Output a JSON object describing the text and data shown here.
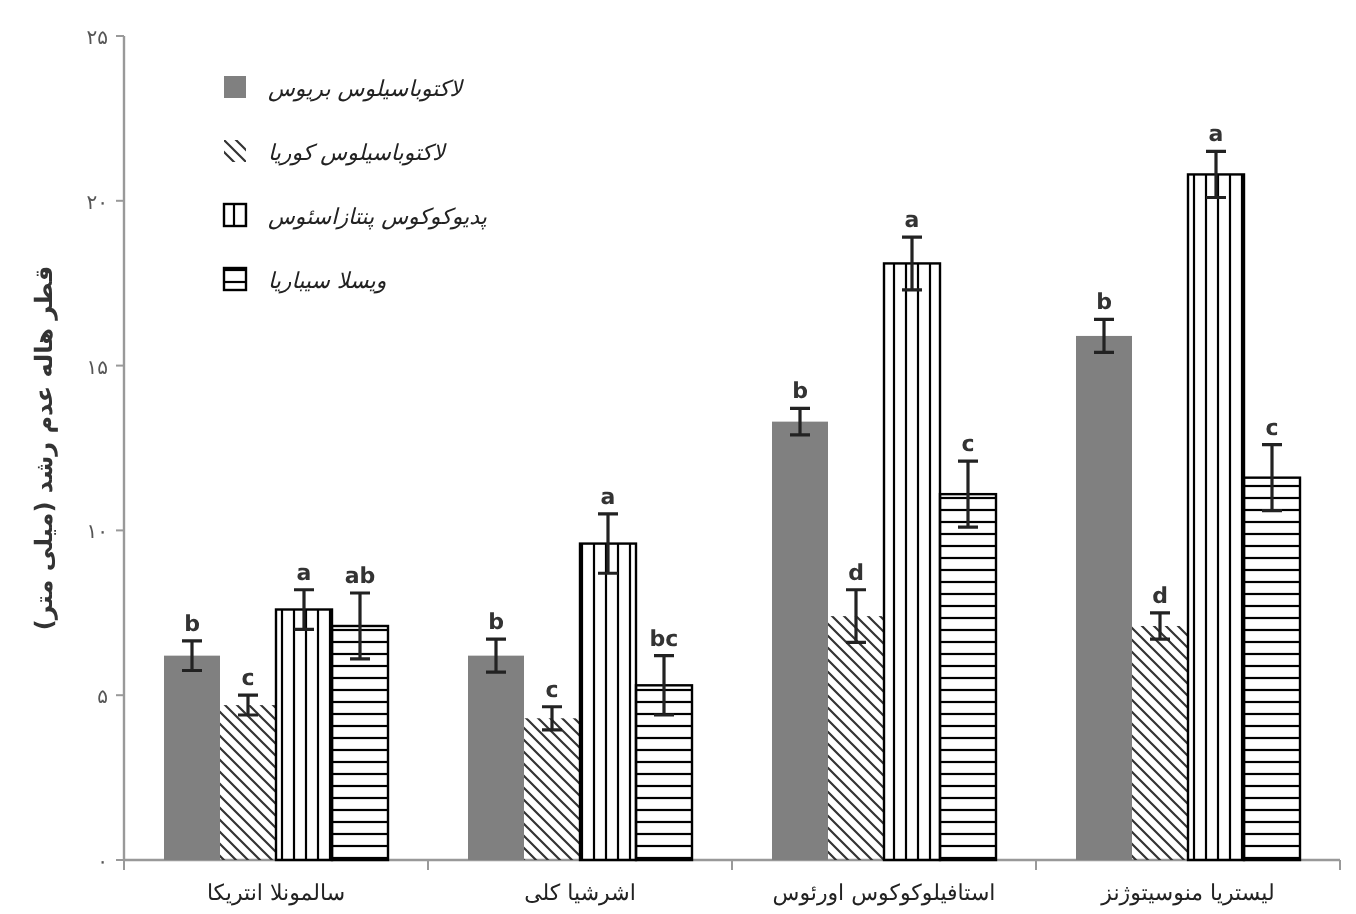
{
  "chart_data": {
    "type": "bar",
    "ylabel": "قطر هاله عدم رشد (میلی متر)",
    "categories": [
      "سالمونلا انتریکا",
      "اشرشیا کلی",
      "استافیلوکوکوس اورئوس",
      "لیستریا منوسیتوژنز"
    ],
    "series": [
      {
        "name": "لاکتوباسیلوس بریوس",
        "color": "#808080",
        "values": [
          6.2,
          6.2,
          13.3,
          15.9
        ],
        "errors": [
          0.45,
          0.5,
          0.4,
          0.5
        ],
        "value_labels": [
          "b",
          "b",
          "b",
          "b"
        ]
      },
      {
        "name": "لاکتوباسیلوس کوریا",
        "color": "#333333",
        "values": [
          4.7,
          4.3,
          7.4,
          7.1
        ],
        "errors": [
          0.3,
          0.35,
          0.8,
          0.4
        ],
        "value_labels": [
          "c",
          "c",
          "d",
          "d"
        ]
      },
      {
        "name": "پدیوکوکوس پنتازاسئوس",
        "color": "#000000",
        "values": [
          7.6,
          9.6,
          18.1,
          20.8
        ],
        "errors": [
          0.6,
          0.9,
          0.8,
          0.7
        ],
        "value_labels": [
          "a",
          "a",
          "a",
          "a"
        ]
      },
      {
        "name": "ویسلا سیباریا",
        "color": "#000000",
        "values": [
          7.1,
          5.3,
          11.1,
          11.6
        ],
        "errors": [
          1.0,
          0.9,
          1.0,
          1.0
        ],
        "value_labels": [
          "ab",
          "bc",
          "c",
          "c"
        ]
      }
    ],
    "ylim": [
      0,
      25
    ],
    "yticks": [
      {
        "value": 0,
        "label": "۰"
      },
      {
        "value": 5,
        "label": "۵"
      },
      {
        "value": 10,
        "label": "۱۰"
      },
      {
        "value": 15,
        "label": "۱۵"
      },
      {
        "value": 20,
        "label": "۲۰"
      },
      {
        "value": 25,
        "label": "۲۵"
      }
    ],
    "legend": "top left",
    "grid": false
  }
}
